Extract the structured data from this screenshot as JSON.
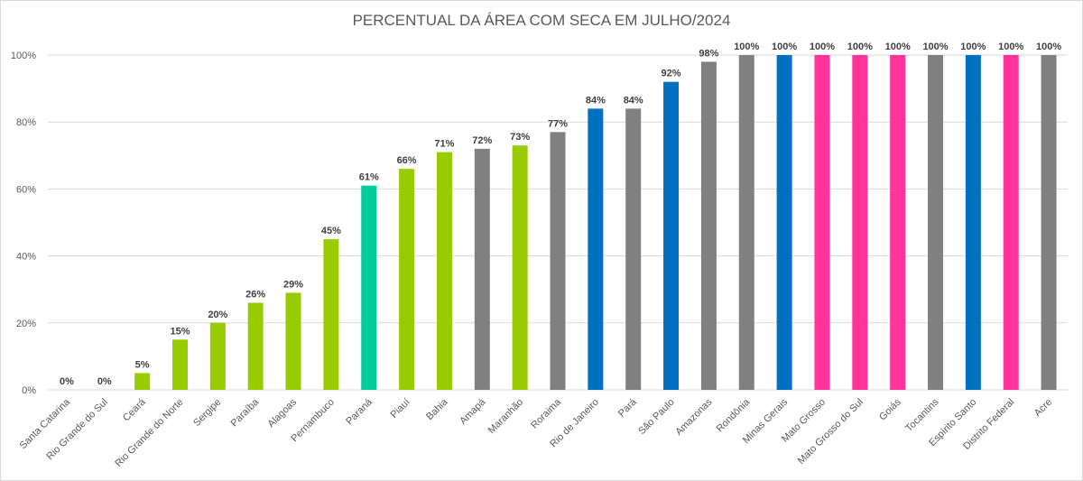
{
  "chart_data": {
    "type": "bar",
    "title": "PERCENTUAL DA ÁREA COM SECA EM JULHO/2024",
    "xlabel": "",
    "ylabel": "",
    "ylim": [
      0,
      100
    ],
    "yticks": [
      "0%",
      "20%",
      "40%",
      "60%",
      "80%",
      "100%"
    ],
    "grid": true,
    "legend": "none",
    "categories": [
      "Santa Catarina",
      "Rio Grande do Sul",
      "Ceará",
      "Rio Grande do Norte",
      "Sergipe",
      "Paraíba",
      "Alagoas",
      "Pernambuco",
      "Paraná",
      "Piauí",
      "Bahia",
      "Amapá",
      "Maranhão",
      "Roraima",
      "Rio de Janeiro",
      "Pará",
      "São Paulo",
      "Amazonas",
      "Rondônia",
      "Minas Gerais",
      "Mato Grosso",
      "Mato Grosso do Sul",
      "Goiás",
      "Tocantins",
      "Espírito Santo",
      "Distrito Federal",
      "Acre"
    ],
    "values": [
      0,
      0,
      5,
      15,
      20,
      26,
      29,
      45,
      61,
      66,
      71,
      72,
      73,
      77,
      84,
      84,
      92,
      98,
      100,
      100,
      100,
      100,
      100,
      100,
      100,
      100,
      100
    ],
    "data_labels": [
      "0%",
      "0%",
      "5%",
      "15%",
      "20%",
      "26%",
      "29%",
      "45%",
      "61%",
      "66%",
      "71%",
      "72%",
      "73%",
      "77%",
      "84%",
      "84%",
      "92%",
      "98%",
      "100%",
      "100%",
      "100%",
      "100%",
      "100%",
      "100%",
      "100%",
      "100%",
      "100%"
    ],
    "bar_colors": [
      "#99CC00",
      "#99CC00",
      "#99CC00",
      "#99CC00",
      "#99CC00",
      "#99CC00",
      "#99CC00",
      "#99CC00",
      "#00CC99",
      "#99CC00",
      "#99CC00",
      "#808080",
      "#99CC00",
      "#808080",
      "#0070C0",
      "#808080",
      "#0070C0",
      "#808080",
      "#808080",
      "#0070C0",
      "#FF3399",
      "#FF3399",
      "#FF3399",
      "#808080",
      "#0070C0",
      "#FF3399",
      "#808080"
    ]
  }
}
